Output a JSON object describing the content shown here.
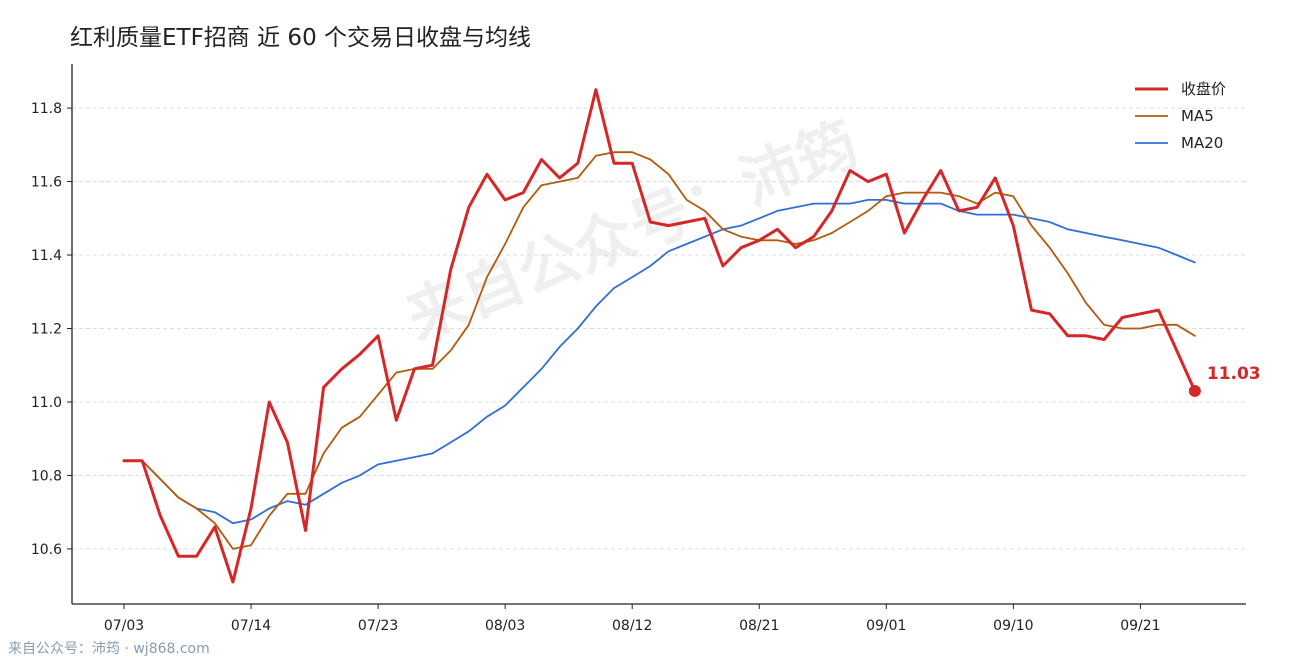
{
  "title": "红利质量ETF招商 近 60 个交易日收盘与均线",
  "footer": "来自公众号：沛筠 · wj868.com",
  "watermark": "来自公众号：沛筠",
  "colors": {
    "close": "#d62728",
    "ma5": "#b5590c",
    "ma20": "#2f6fd6",
    "grid": "#dddddd",
    "axis": "#222222"
  },
  "chart_data": {
    "type": "line",
    "x_tick_labels": [
      "07/03",
      "07/14",
      "07/23",
      "08/03",
      "08/12",
      "08/21",
      "09/01",
      "09/10",
      "09/21"
    ],
    "x_tick_positions": [
      0,
      7,
      14,
      21,
      28,
      35,
      42,
      49,
      56
    ],
    "ylim": [
      10.45,
      11.92
    ],
    "yticks": [
      10.6,
      10.8,
      11.0,
      11.2,
      11.4,
      11.6,
      11.8
    ],
    "ytick_labels": [
      "10.6",
      "10.8",
      "11.0",
      "11.2",
      "11.4",
      "11.6",
      "11.8"
    ],
    "grid": true,
    "legend_position": "top-right",
    "series": [
      {
        "name": "收盘价",
        "key": "close",
        "values": [
          10.84,
          10.84,
          10.69,
          10.58,
          10.58,
          10.66,
          10.51,
          10.71,
          11.0,
          10.89,
          10.65,
          11.04,
          11.09,
          11.13,
          11.18,
          10.95,
          11.09,
          11.1,
          11.36,
          11.53,
          11.62,
          11.55,
          11.57,
          11.66,
          11.61,
          11.65,
          11.85,
          11.65,
          11.65,
          11.49,
          11.48,
          11.49,
          11.5,
          11.37,
          11.42,
          11.44,
          11.47,
          11.42,
          11.45,
          11.52,
          11.63,
          11.6,
          11.62,
          11.46,
          11.55,
          11.63,
          11.52,
          11.53,
          11.61,
          11.48,
          11.25,
          11.24,
          11.18,
          11.18,
          11.17,
          11.23,
          11.24,
          11.25,
          11.14,
          11.03
        ]
      },
      {
        "name": "MA5",
        "key": "ma5",
        "values": [
          10.84,
          10.84,
          10.79,
          10.74,
          10.71,
          10.67,
          10.6,
          10.61,
          10.69,
          10.75,
          10.75,
          10.86,
          10.93,
          10.96,
          11.02,
          11.08,
          11.09,
          11.09,
          11.14,
          11.21,
          11.34,
          11.43,
          11.53,
          11.59,
          11.6,
          11.61,
          11.67,
          11.68,
          11.68,
          11.66,
          11.62,
          11.55,
          11.52,
          11.47,
          11.45,
          11.44,
          11.44,
          11.43,
          11.44,
          11.46,
          11.49,
          11.52,
          11.56,
          11.57,
          11.57,
          11.57,
          11.56,
          11.54,
          11.57,
          11.56,
          11.48,
          11.42,
          11.35,
          11.27,
          11.21,
          11.2,
          11.2,
          11.21,
          11.21,
          11.18
        ]
      },
      {
        "name": "MA20",
        "key": "ma20",
        "values": [
          10.84,
          10.84,
          10.79,
          10.74,
          10.71,
          10.7,
          10.67,
          10.68,
          10.71,
          10.73,
          10.72,
          10.75,
          10.78,
          10.8,
          10.83,
          10.84,
          10.85,
          10.86,
          10.89,
          10.92,
          10.96,
          10.99,
          11.04,
          11.09,
          11.15,
          11.2,
          11.26,
          11.31,
          11.34,
          11.37,
          11.41,
          11.43,
          11.45,
          11.47,
          11.48,
          11.5,
          11.52,
          11.53,
          11.54,
          11.54,
          11.54,
          11.55,
          11.55,
          11.54,
          11.54,
          11.54,
          11.52,
          11.51,
          11.51,
          11.51,
          11.5,
          11.49,
          11.47,
          11.46,
          11.45,
          11.44,
          11.43,
          11.42,
          11.4,
          11.38
        ]
      }
    ],
    "last_point": {
      "value": 11.03,
      "label": "11.03"
    }
  }
}
